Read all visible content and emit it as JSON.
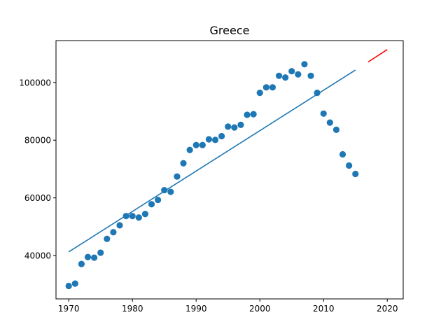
{
  "chart_data": {
    "type": "scatter",
    "title": "Greece",
    "xlabel": "",
    "ylabel": "",
    "xlim": [
      1968,
      2022.5
    ],
    "ylim": [
      25000,
      114500
    ],
    "xticks": [
      1970,
      1980,
      1990,
      2000,
      2010,
      2020
    ],
    "yticks": [
      40000,
      60000,
      80000,
      100000
    ],
    "grid": false,
    "colors": {
      "points": "#1f77b4",
      "fit": "#1f77b4",
      "forecast": "#ff0000"
    },
    "series": [
      {
        "kind": "scatter",
        "x": [
          1970,
          1971,
          1972,
          1973,
          1974,
          1975,
          1976,
          1977,
          1978,
          1979,
          1980,
          1981,
          1982,
          1983,
          1984,
          1985,
          1986,
          1987,
          1988,
          1989,
          1990,
          1991,
          1992,
          1993,
          1994,
          1995,
          1996,
          1997,
          1998,
          1999,
          2000,
          2001,
          2002,
          2003,
          2004,
          2005,
          2006,
          2007,
          2008,
          2009,
          2010,
          2011,
          2012,
          2013,
          2014,
          2015
        ],
        "y": [
          29500,
          30300,
          37100,
          39500,
          39300,
          41000,
          45800,
          48100,
          50500,
          53700,
          53700,
          53200,
          54400,
          57800,
          59300,
          62700,
          62100,
          67400,
          72000,
          76600,
          78300,
          78300,
          80300,
          80100,
          81400,
          84700,
          84400,
          85300,
          88800,
          89000,
          96400,
          98300,
          98300,
          102300,
          101700,
          103900,
          102800,
          106300,
          102300,
          96400,
          89200,
          86100,
          83600,
          75100,
          71200,
          68300
        ]
      },
      {
        "kind": "line",
        "x": [
          1970,
          2015
        ],
        "y": [
          41300,
          104300
        ]
      },
      {
        "kind": "line",
        "x": [
          2017,
          2020
        ],
        "y": [
          107100,
          111400
        ]
      }
    ]
  }
}
